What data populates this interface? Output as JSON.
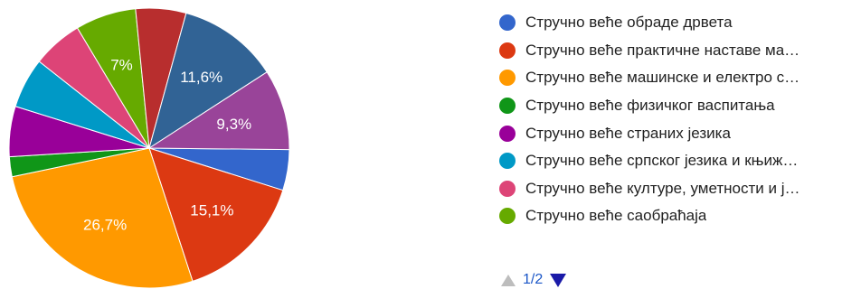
{
  "chart_data": {
    "type": "pie",
    "slices": [
      {
        "label": "Стручно веће обраде дрвета",
        "value": 4.7,
        "color": "#3366cc",
        "data_label": ""
      },
      {
        "label": "Стручно веће практичне наставе ма…",
        "value": 15.1,
        "color": "#dc3912",
        "data_label": "15,1%"
      },
      {
        "label": "Стручно веће машинске и електро с…",
        "value": 26.7,
        "color": "#ff9900",
        "data_label": "26,7%"
      },
      {
        "label": "Стручно веће физичког васпитања",
        "value": 2.3,
        "color": "#109618",
        "data_label": ""
      },
      {
        "label": "Стручно веће страних језика",
        "value": 5.8,
        "color": "#990099",
        "data_label": ""
      },
      {
        "label": "Стручно веће српског језика и књиж…",
        "value": 5.8,
        "color": "#0099c6",
        "data_label": ""
      },
      {
        "label": "Стручно веће културе, уметности и ј…",
        "value": 5.8,
        "color": "#dd4477",
        "data_label": ""
      },
      {
        "label": "Стручно веће саобраћаја",
        "value": 7.0,
        "color": "#66aa00",
        "data_label": "7%"
      },
      {
        "label": "",
        "value": 5.8,
        "color": "#b82e2e",
        "data_label": ""
      },
      {
        "label": "",
        "value": 11.6,
        "color": "#316395",
        "data_label": "11,6%"
      },
      {
        "label": "",
        "value": 9.3,
        "color": "#994499",
        "data_label": "9,3%"
      }
    ],
    "legend_position": "right"
  },
  "legend": {
    "items": [
      {
        "label": "Стручно веће обраде дрвета",
        "color": "#3366cc"
      },
      {
        "label": "Стручно веће практичне наставе ма…",
        "color": "#dc3912"
      },
      {
        "label": "Стручно веће машинске и електро с…",
        "color": "#ff9900"
      },
      {
        "label": "Стручно веће физичког васпитања",
        "color": "#109618"
      },
      {
        "label": "Стручно веће страних језика",
        "color": "#990099"
      },
      {
        "label": "Стручно веће српског језика и књиж…",
        "color": "#0099c6"
      },
      {
        "label": "Стручно веће културе, уметности и ј…",
        "color": "#dd4477"
      },
      {
        "label": "Стручно веће саобраћаја",
        "color": "#66aa00"
      }
    ]
  },
  "pager": {
    "text": "1/2",
    "prev_icon": "triangle-up-icon",
    "next_icon": "triangle-down-icon"
  }
}
